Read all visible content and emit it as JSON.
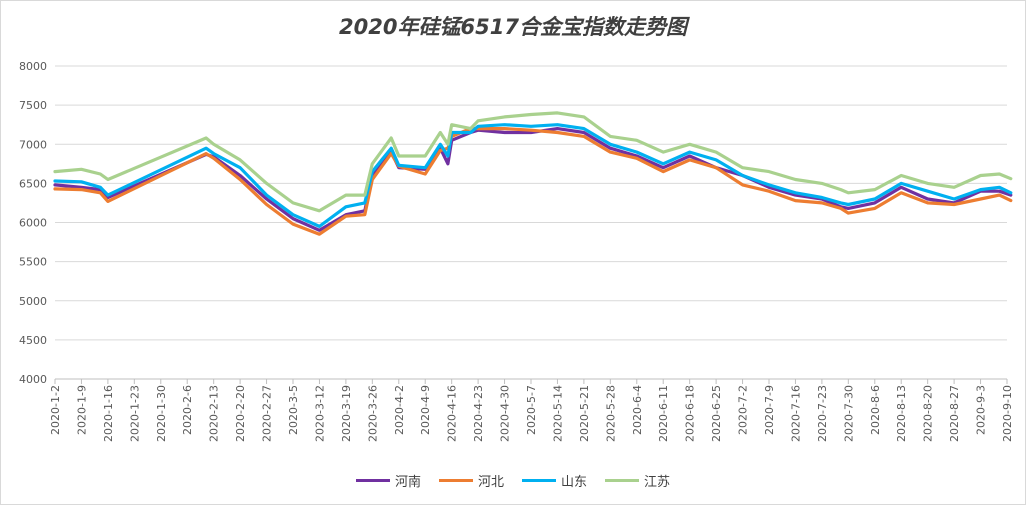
{
  "chart_data": {
    "type": "line",
    "title": "2020年硅锰6517合金宝指数走势图",
    "ylim": [
      4000,
      8000
    ],
    "y_ticks": [
      4000,
      4500,
      5000,
      5500,
      6000,
      6500,
      7000,
      7500,
      8000
    ],
    "x_tick_labels": [
      "2020-1-2",
      "2020-1-9",
      "2020-1-16",
      "2020-1-23",
      "2020-1-30",
      "2020-2-6",
      "2020-2-13",
      "2020-2-20",
      "2020-2-27",
      "2020-3-5",
      "2020-3-12",
      "2020-3-19",
      "2020-3-26",
      "2020-4-2",
      "2020-4-9",
      "2020-4-16",
      "2020-4-23",
      "2020-4-30",
      "2020-5-7",
      "2020-5-14",
      "2020-5-21",
      "2020-5-28",
      "2020-6-4",
      "2020-6-11",
      "2020-6-18",
      "2020-6-25",
      "2020-7-2",
      "2020-7-9",
      "2020-7-16",
      "2020-7-23",
      "2020-7-30",
      "2020-8-6",
      "2020-8-13",
      "2020-8-20",
      "2020-8-27",
      "2020-9-3",
      "2020-9-10"
    ],
    "grid": true,
    "legend_position": "bottom",
    "series": [
      {
        "name": "河南",
        "color": "#7030a0",
        "points": [
          [
            "2020-1-2",
            6480
          ],
          [
            "2020-1-9",
            6450
          ],
          [
            "2020-1-14",
            6420
          ],
          [
            "2020-1-16",
            6320
          ],
          [
            "2020-2-11",
            6870
          ],
          [
            "2020-2-13",
            6840
          ],
          [
            "2020-2-20",
            6600
          ],
          [
            "2020-2-27",
            6300
          ],
          [
            "2020-3-5",
            6050
          ],
          [
            "2020-3-12",
            5900
          ],
          [
            "2020-3-19",
            6100
          ],
          [
            "2020-3-24",
            6150
          ],
          [
            "2020-3-26",
            6600
          ],
          [
            "2020-3-31",
            6900
          ],
          [
            "2020-4-2",
            6700
          ],
          [
            "2020-4-9",
            6680
          ],
          [
            "2020-4-13",
            6950
          ],
          [
            "2020-4-15",
            6750
          ],
          [
            "2020-4-16",
            7050
          ],
          [
            "2020-4-21",
            7150
          ],
          [
            "2020-4-23",
            7180
          ],
          [
            "2020-4-30",
            7150
          ],
          [
            "2020-5-7",
            7150
          ],
          [
            "2020-5-14",
            7200
          ],
          [
            "2020-5-21",
            7150
          ],
          [
            "2020-5-28",
            6950
          ],
          [
            "2020-6-4",
            6850
          ],
          [
            "2020-6-11",
            6700
          ],
          [
            "2020-6-18",
            6850
          ],
          [
            "2020-6-25",
            6700
          ],
          [
            "2020-7-2",
            6600
          ],
          [
            "2020-7-9",
            6450
          ],
          [
            "2020-7-16",
            6350
          ],
          [
            "2020-7-23",
            6300
          ],
          [
            "2020-7-28",
            6200
          ],
          [
            "2020-7-30",
            6180
          ],
          [
            "2020-8-6",
            6250
          ],
          [
            "2020-8-13",
            6450
          ],
          [
            "2020-8-20",
            6300
          ],
          [
            "2020-8-27",
            6250
          ],
          [
            "2020-9-3",
            6400
          ],
          [
            "2020-9-8",
            6400
          ],
          [
            "2020-9-11",
            6350
          ]
        ]
      },
      {
        "name": "河北",
        "color": "#ed7d31",
        "points": [
          [
            "2020-1-2",
            6430
          ],
          [
            "2020-1-9",
            6420
          ],
          [
            "2020-1-14",
            6380
          ],
          [
            "2020-1-16",
            6270
          ],
          [
            "2020-2-11",
            6880
          ],
          [
            "2020-2-13",
            6820
          ],
          [
            "2020-2-20",
            6550
          ],
          [
            "2020-2-27",
            6230
          ],
          [
            "2020-3-5",
            5980
          ],
          [
            "2020-3-12",
            5850
          ],
          [
            "2020-3-19",
            6080
          ],
          [
            "2020-3-24",
            6100
          ],
          [
            "2020-3-26",
            6550
          ],
          [
            "2020-3-31",
            6880
          ],
          [
            "2020-4-2",
            6720
          ],
          [
            "2020-4-9",
            6620
          ],
          [
            "2020-4-13",
            6920
          ],
          [
            "2020-4-15",
            6950
          ],
          [
            "2020-4-16",
            7100
          ],
          [
            "2020-4-21",
            7200
          ],
          [
            "2020-4-23",
            7200
          ],
          [
            "2020-4-30",
            7200
          ],
          [
            "2020-5-7",
            7180
          ],
          [
            "2020-5-14",
            7150
          ],
          [
            "2020-5-21",
            7100
          ],
          [
            "2020-5-28",
            6900
          ],
          [
            "2020-6-4",
            6820
          ],
          [
            "2020-6-11",
            6650
          ],
          [
            "2020-6-18",
            6800
          ],
          [
            "2020-6-25",
            6700
          ],
          [
            "2020-7-2",
            6480
          ],
          [
            "2020-7-9",
            6400
          ],
          [
            "2020-7-16",
            6280
          ],
          [
            "2020-7-23",
            6250
          ],
          [
            "2020-7-28",
            6180
          ],
          [
            "2020-7-30",
            6120
          ],
          [
            "2020-8-6",
            6180
          ],
          [
            "2020-8-13",
            6380
          ],
          [
            "2020-8-20",
            6250
          ],
          [
            "2020-8-27",
            6230
          ],
          [
            "2020-9-3",
            6300
          ],
          [
            "2020-9-8",
            6350
          ],
          [
            "2020-9-11",
            6280
          ]
        ]
      },
      {
        "name": "山东",
        "color": "#00b0f0",
        "points": [
          [
            "2020-1-2",
            6530
          ],
          [
            "2020-1-9",
            6520
          ],
          [
            "2020-1-14",
            6450
          ],
          [
            "2020-1-16",
            6350
          ],
          [
            "2020-2-11",
            6950
          ],
          [
            "2020-2-13",
            6880
          ],
          [
            "2020-2-20",
            6700
          ],
          [
            "2020-2-27",
            6350
          ],
          [
            "2020-3-5",
            6100
          ],
          [
            "2020-3-12",
            5950
          ],
          [
            "2020-3-19",
            6200
          ],
          [
            "2020-3-24",
            6250
          ],
          [
            "2020-3-26",
            6650
          ],
          [
            "2020-3-31",
            6950
          ],
          [
            "2020-4-2",
            6730
          ],
          [
            "2020-4-9",
            6700
          ],
          [
            "2020-4-13",
            7000
          ],
          [
            "2020-4-15",
            6850
          ],
          [
            "2020-4-16",
            7150
          ],
          [
            "2020-4-21",
            7150
          ],
          [
            "2020-4-23",
            7230
          ],
          [
            "2020-4-30",
            7250
          ],
          [
            "2020-5-7",
            7230
          ],
          [
            "2020-5-14",
            7250
          ],
          [
            "2020-5-21",
            7200
          ],
          [
            "2020-5-28",
            7000
          ],
          [
            "2020-6-4",
            6900
          ],
          [
            "2020-6-11",
            6750
          ],
          [
            "2020-6-18",
            6900
          ],
          [
            "2020-6-25",
            6800
          ],
          [
            "2020-7-2",
            6600
          ],
          [
            "2020-7-9",
            6480
          ],
          [
            "2020-7-16",
            6380
          ],
          [
            "2020-7-23",
            6320
          ],
          [
            "2020-7-28",
            6250
          ],
          [
            "2020-7-30",
            6230
          ],
          [
            "2020-8-6",
            6300
          ],
          [
            "2020-8-13",
            6500
          ],
          [
            "2020-8-20",
            6400
          ],
          [
            "2020-8-27",
            6300
          ],
          [
            "2020-9-3",
            6420
          ],
          [
            "2020-9-8",
            6450
          ],
          [
            "2020-9-11",
            6380
          ]
        ]
      },
      {
        "name": "江苏",
        "color": "#a9d18e",
        "points": [
          [
            "2020-1-2",
            6650
          ],
          [
            "2020-1-9",
            6680
          ],
          [
            "2020-1-14",
            6620
          ],
          [
            "2020-1-16",
            6550
          ],
          [
            "2020-2-11",
            7080
          ],
          [
            "2020-2-13",
            7000
          ],
          [
            "2020-2-20",
            6800
          ],
          [
            "2020-2-27",
            6500
          ],
          [
            "2020-3-5",
            6250
          ],
          [
            "2020-3-12",
            6150
          ],
          [
            "2020-3-19",
            6350
          ],
          [
            "2020-3-24",
            6350
          ],
          [
            "2020-3-26",
            6750
          ],
          [
            "2020-3-31",
            7080
          ],
          [
            "2020-4-2",
            6850
          ],
          [
            "2020-4-9",
            6850
          ],
          [
            "2020-4-13",
            7150
          ],
          [
            "2020-4-15",
            7000
          ],
          [
            "2020-4-16",
            7250
          ],
          [
            "2020-4-21",
            7200
          ],
          [
            "2020-4-23",
            7300
          ],
          [
            "2020-4-30",
            7350
          ],
          [
            "2020-5-7",
            7380
          ],
          [
            "2020-5-14",
            7400
          ],
          [
            "2020-5-21",
            7350
          ],
          [
            "2020-5-28",
            7100
          ],
          [
            "2020-6-4",
            7050
          ],
          [
            "2020-6-11",
            6900
          ],
          [
            "2020-6-18",
            7000
          ],
          [
            "2020-6-25",
            6900
          ],
          [
            "2020-7-2",
            6700
          ],
          [
            "2020-7-9",
            6650
          ],
          [
            "2020-7-16",
            6550
          ],
          [
            "2020-7-23",
            6500
          ],
          [
            "2020-7-28",
            6420
          ],
          [
            "2020-7-30",
            6380
          ],
          [
            "2020-8-6",
            6420
          ],
          [
            "2020-8-13",
            6600
          ],
          [
            "2020-8-20",
            6500
          ],
          [
            "2020-8-27",
            6450
          ],
          [
            "2020-9-3",
            6600
          ],
          [
            "2020-9-8",
            6620
          ],
          [
            "2020-9-11",
            6560
          ]
        ]
      }
    ]
  }
}
